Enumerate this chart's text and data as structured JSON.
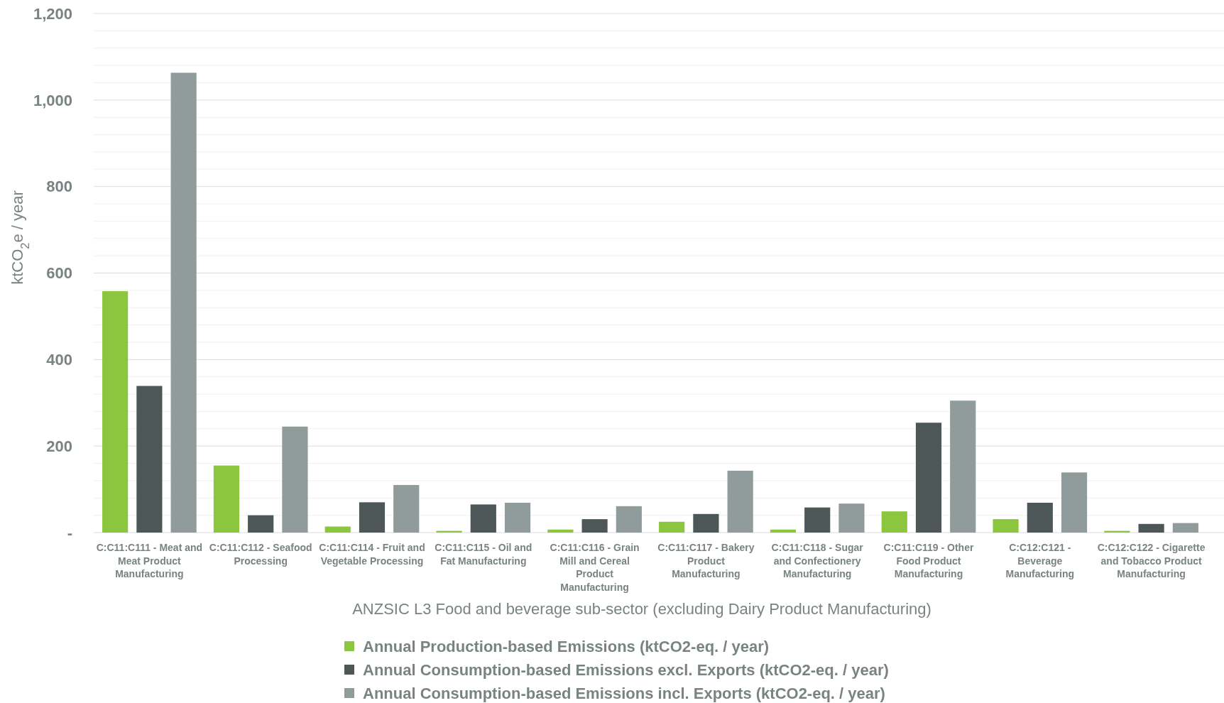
{
  "chart_data": {
    "type": "bar",
    "xlabel": "ANZSIC L3 Food and beverage sub-sector (excluding Dairy Product Manufacturing)",
    "ylabel": "ktCO$_{2}$e / year",
    "categories": [
      "C:C11:C111 - Meat and Meat Product Manufacturing",
      "C:C11:C112 - Seafood Processing",
      "C:C11:C114 - Fruit and Vegetable Processing",
      "C:C11:C115 - Oil and Fat Manufacturing",
      "C:C11:C116 - Grain Mill and Cereal Product Manufacturing",
      "C:C11:C117 - Bakery Product Manufacturing",
      "C:C11:C118 - Sugar and Confectionery Manufacturing",
      "C:C11:C119 - Other Food Product Manufacturing",
      "C:C12:C121 - Beverage Manufacturing",
      "C:C12:C122 - Cigarette and Tobacco Product Manufacturing"
    ],
    "series": [
      {
        "name": "Annual Production-based Emissions (ktCO2-eq. / year)",
        "color": "#8cc63f",
        "values": [
          558,
          155,
          14,
          4,
          7,
          25,
          7,
          49,
          31,
          4
        ]
      },
      {
        "name": "Annual Consumption-based Emissions excl. Exports (ktCO2-eq. / year)",
        "color": "#4d5757",
        "values": [
          339,
          40,
          70,
          65,
          31,
          43,
          58,
          254,
          69,
          20
        ]
      },
      {
        "name": "Annual Consumption-based Emissions incl. Exports (ktCO2-eq. / year)",
        "color": "#8f9c9b",
        "values": [
          1063,
          245,
          110,
          69,
          61,
          143,
          67,
          305,
          139,
          22
        ]
      }
    ],
    "ylim": [
      0,
      1200
    ],
    "yticks": [
      {
        "value": 0,
        "label": "-"
      },
      {
        "value": 40,
        "label": null
      },
      {
        "value": 80,
        "label": null
      },
      {
        "value": 120,
        "label": null
      },
      {
        "value": 160,
        "label": null
      },
      200,
      {
        "value": 240,
        "label": null
      },
      {
        "value": 280,
        "label": null
      },
      {
        "value": 320,
        "label": null
      },
      {
        "value": 360,
        "label": null
      },
      400,
      {
        "value": 440,
        "label": null
      },
      {
        "value": 480,
        "label": null
      },
      {
        "value": 520,
        "label": null
      },
      {
        "value": 560,
        "label": null
      },
      600,
      {
        "value": 640,
        "label": null
      },
      {
        "value": 680,
        "label": null
      },
      {
        "value": 720,
        "label": null
      },
      {
        "value": 760,
        "label": null
      },
      800,
      {
        "value": 840,
        "label": null
      },
      {
        "value": 880,
        "label": null
      },
      {
        "value": 920,
        "label": null
      },
      {
        "value": 960,
        "label": null
      },
      {
        "value": 1000,
        "label": "1,000"
      },
      {
        "value": 1040,
        "label": null
      },
      {
        "value": 1080,
        "label": null
      },
      {
        "value": 1120,
        "label": null
      },
      {
        "value": 1160,
        "label": null
      },
      {
        "value": 1200,
        "label": "1,200"
      }
    ],
    "grid": "y",
    "legend": "bottom"
  }
}
